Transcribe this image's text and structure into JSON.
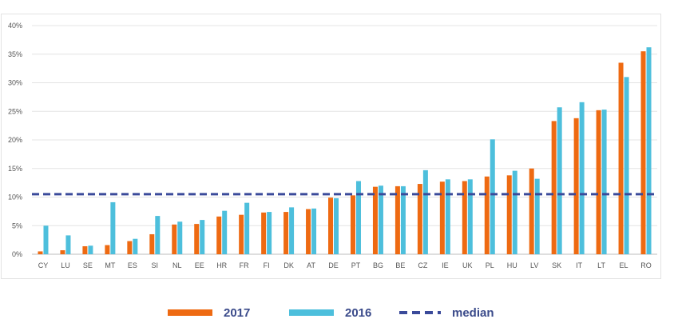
{
  "chart_data": {
    "type": "bar",
    "categories": [
      "CY",
      "LU",
      "SE",
      "MT",
      "ES",
      "SI",
      "NL",
      "EE",
      "HR",
      "FR",
      "FI",
      "DK",
      "AT",
      "DE",
      "PT",
      "BG",
      "BE",
      "CZ",
      "IE",
      "UK",
      "PL",
      "HU",
      "LV",
      "SK",
      "IT",
      "LT",
      "EL",
      "RO"
    ],
    "series": [
      {
        "name": "2017",
        "color": "#ee6a12",
        "values": [
          0.5,
          0.7,
          1.4,
          1.6,
          2.3,
          3.5,
          5.2,
          5.3,
          6.6,
          6.9,
          7.3,
          7.4,
          7.9,
          9.9,
          10.3,
          11.8,
          11.9,
          12.3,
          12.7,
          12.8,
          13.6,
          13.8,
          15.0,
          23.3,
          23.8,
          25.2,
          33.5,
          35.5
        ]
      },
      {
        "name": "2016",
        "color": "#4dbfdc",
        "values": [
          5.0,
          3.3,
          1.5,
          9.1,
          2.7,
          6.7,
          5.7,
          6.0,
          7.6,
          9.0,
          7.4,
          8.2,
          8.0,
          9.8,
          12.8,
          12.0,
          11.9,
          14.7,
          13.1,
          13.1,
          20.1,
          14.6,
          13.2,
          25.7,
          26.6,
          25.3,
          31.0,
          36.2
        ]
      }
    ],
    "median": {
      "name": "median",
      "value": 10.5,
      "color": "#3a4a9a"
    },
    "ylim": [
      0,
      40
    ],
    "yticks": [
      "0%",
      "5%",
      "10%",
      "15%",
      "20%",
      "25%",
      "30%",
      "35%",
      "40%"
    ],
    "grid": true,
    "legend_position": "bottom",
    "title": "",
    "xlabel": "",
    "ylabel": ""
  },
  "legend": {
    "items": [
      {
        "label": "2017",
        "color": "#ee6a12",
        "style": "solid"
      },
      {
        "label": "2016",
        "color": "#4dbfdc",
        "style": "solid"
      },
      {
        "label": "median",
        "color": "#3a4a9a",
        "style": "dashed"
      }
    ]
  }
}
